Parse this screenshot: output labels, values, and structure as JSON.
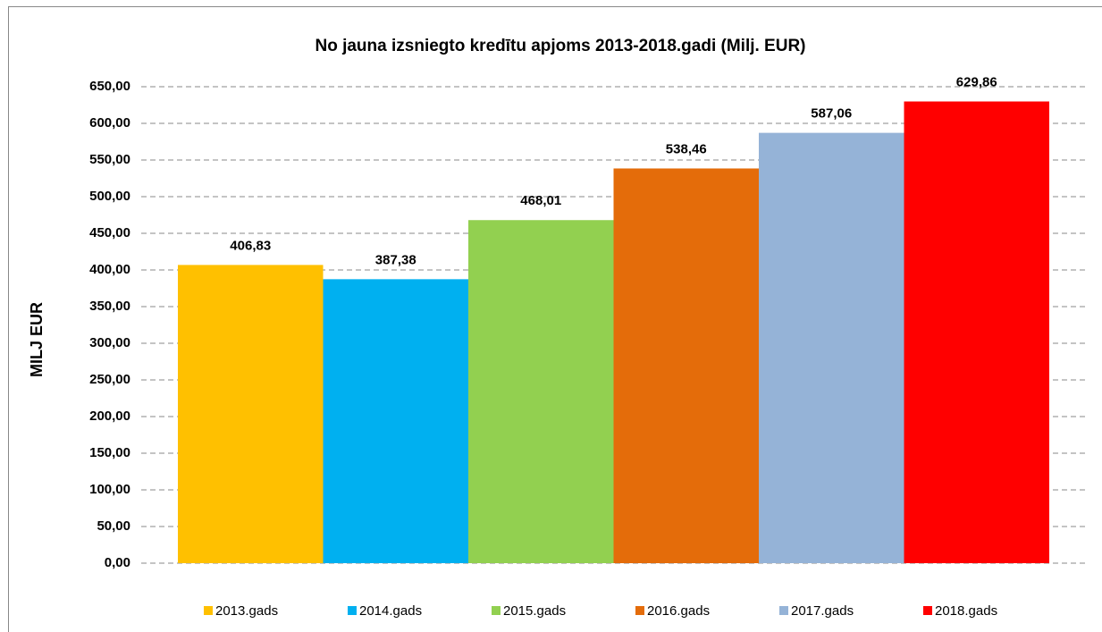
{
  "chart_data": {
    "type": "bar",
    "title": "No jauna izsniegto kredītu apjoms 2013-2018.gadi (Milj. EUR)",
    "y_label": "MILJ EUR",
    "categories": [
      null
    ],
    "series": [
      {
        "name": "2013.gads",
        "color": "#ffc000",
        "values": [
          406.83
        ],
        "value_labels": [
          "406,83"
        ]
      },
      {
        "name": "2014.gads",
        "color": "#00b0f0",
        "values": [
          387.38
        ],
        "value_labels": [
          "387,38"
        ]
      },
      {
        "name": "2015.gads",
        "color": "#92d050",
        "values": [
          468.01
        ],
        "value_labels": [
          "468,01"
        ]
      },
      {
        "name": "2016.gads",
        "color": "#e46c0a",
        "values": [
          538.46
        ],
        "value_labels": [
          "538,46"
        ]
      },
      {
        "name": "2017.gads",
        "color": "#95b3d7",
        "values": [
          587.06
        ],
        "value_labels": [
          "587,06"
        ]
      },
      {
        "name": "2018.gads",
        "color": "#ff0000",
        "values": [
          629.86
        ],
        "value_labels": [
          "629,86"
        ]
      }
    ],
    "ylim": [
      0,
      650
    ],
    "yticks": [
      {
        "value": 0,
        "label": "0,00"
      },
      {
        "value": 50,
        "label": "50,00"
      },
      {
        "value": 100,
        "label": "100,00"
      },
      {
        "value": 150,
        "label": "150,00"
      },
      {
        "value": 200,
        "label": "200,00"
      },
      {
        "value": 250,
        "label": "250,00"
      },
      {
        "value": 300,
        "label": "300,00"
      },
      {
        "value": 350,
        "label": "350,00"
      },
      {
        "value": 400,
        "label": "400,00"
      },
      {
        "value": 450,
        "label": "450,00"
      },
      {
        "value": 500,
        "label": "500,00"
      },
      {
        "value": 550,
        "label": "550,00"
      },
      {
        "value": 600,
        "label": "600,00"
      },
      {
        "value": 650,
        "label": "650,00"
      }
    ],
    "grid": true,
    "legend": "bottom"
  }
}
